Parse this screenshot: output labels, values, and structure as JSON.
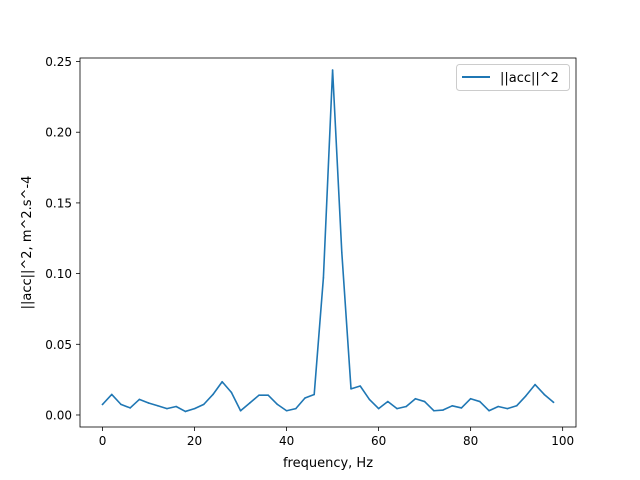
{
  "chart_data": {
    "type": "line",
    "title": "",
    "xlabel": "frequency, Hz",
    "ylabel": "||acc||^2, m^2.s^-4",
    "xlim": [
      -4.9,
      102.9
    ],
    "ylim": [
      -0.0085,
      0.2525
    ],
    "xticks": [
      0,
      20,
      40,
      60,
      80,
      100
    ],
    "xtick_labels": [
      "0",
      "20",
      "40",
      "60",
      "80",
      "100"
    ],
    "yticks": [
      0.0,
      0.05,
      0.1,
      0.15,
      0.2,
      0.25
    ],
    "ytick_labels": [
      "0.00",
      "0.05",
      "0.10",
      "0.15",
      "0.20",
      "0.25"
    ],
    "grid": false,
    "legend_position": "top-right",
    "series": [
      {
        "name": "||acc||^2",
        "color": "#1f77b4",
        "x": [
          0,
          2,
          4,
          6,
          8,
          10,
          12,
          14,
          16,
          18,
          20,
          22,
          24,
          26,
          28,
          30,
          32,
          34,
          36,
          38,
          40,
          42,
          44,
          46,
          48,
          50,
          52,
          54,
          56,
          58,
          60,
          62,
          64,
          66,
          68,
          70,
          72,
          74,
          76,
          78,
          80,
          82,
          84,
          86,
          88,
          90,
          92,
          94,
          96,
          98
        ],
        "y": [
          0.0075,
          0.0145,
          0.0075,
          0.005,
          0.011,
          0.0085,
          0.0065,
          0.0045,
          0.006,
          0.0025,
          0.0045,
          0.0075,
          0.0145,
          0.0235,
          0.016,
          0.003,
          0.0085,
          0.014,
          0.014,
          0.0075,
          0.003,
          0.0045,
          0.012,
          0.0145,
          0.097,
          0.244,
          0.115,
          0.0185,
          0.0205,
          0.011,
          0.0045,
          0.0095,
          0.0045,
          0.006,
          0.0115,
          0.0095,
          0.003,
          0.0035,
          0.0065,
          0.005,
          0.0115,
          0.0095,
          0.003,
          0.006,
          0.0045,
          0.0065,
          0.0135,
          0.0215,
          0.0145,
          0.009
        ]
      }
    ]
  }
}
